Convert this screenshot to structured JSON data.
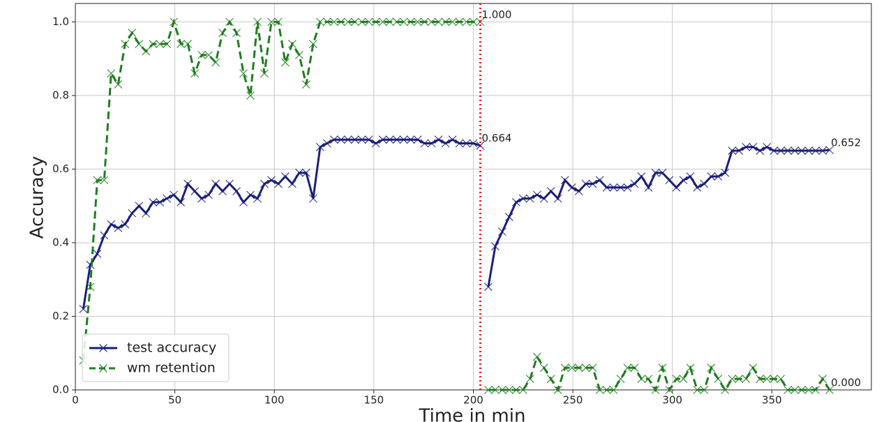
{
  "chart_data": {
    "type": "line",
    "xlabel": "Time in min",
    "ylabel": "Accuracy",
    "xlim": [
      0,
      400
    ],
    "ylim": [
      0,
      1.05
    ],
    "xticks": [
      0,
      50,
      100,
      150,
      200,
      250,
      300,
      350
    ],
    "yticks": [
      {
        "value": 0,
        "label": "0.0"
      },
      {
        "value": 0.2,
        "label": "0.2"
      },
      {
        "value": 0.4,
        "label": "0.4"
      },
      {
        "value": 0.6,
        "label": "0.6"
      },
      {
        "value": 0.8,
        "label": "0.8"
      },
      {
        "value": 1.0,
        "label": "1.0"
      }
    ],
    "grid": true,
    "legend": "lower left",
    "x": [
      4,
      7.5,
      11,
      14.5,
      18,
      21.5,
      25,
      28.5,
      32,
      35.5,
      39,
      42.5,
      46,
      49.5,
      53,
      56.5,
      60,
      63.5,
      67,
      70.5,
      74,
      77.5,
      81,
      84.5,
      88,
      91.5,
      95,
      98.5,
      102,
      105.5,
      109,
      112.5,
      116,
      119.5,
      123,
      126.5,
      130,
      133.5,
      137,
      140.5,
      144,
      147.5,
      151,
      154.5,
      158,
      161.5,
      165,
      168.5,
      172,
      175.5,
      179,
      182.5,
      186,
      189.5,
      193,
      196.5,
      200,
      203.5,
      205.5,
      207.5,
      211,
      214.5,
      218,
      221.5,
      225,
      228.5,
      232,
      235.5,
      239,
      242.5,
      246,
      249.5,
      253,
      256.5,
      260,
      263.5,
      267,
      270.5,
      274,
      277.5,
      281,
      284.5,
      288,
      291.5,
      295,
      298.5,
      302,
      305.5,
      309,
      312.5,
      316,
      319.5,
      323,
      326.5,
      330,
      333.5,
      337,
      340.5,
      344,
      347.5,
      351,
      354.5,
      358,
      361.5,
      365,
      368.5,
      372,
      375.5,
      379
    ],
    "series": [
      {
        "name": "test accuracy",
        "color": "#1a1f7a",
        "dash": false,
        "values": [
          0.22,
          0.34,
          0.37,
          0.42,
          0.45,
          0.44,
          0.45,
          0.48,
          0.5,
          0.48,
          0.51,
          0.51,
          0.52,
          0.53,
          0.51,
          0.56,
          0.54,
          0.52,
          0.53,
          0.56,
          0.54,
          0.56,
          0.54,
          0.51,
          0.53,
          0.52,
          0.56,
          0.57,
          0.56,
          0.58,
          0.56,
          0.59,
          0.59,
          0.52,
          0.66,
          0.67,
          0.68,
          0.68,
          0.68,
          0.68,
          0.68,
          0.68,
          0.67,
          0.68,
          0.68,
          0.68,
          0.68,
          0.68,
          0.68,
          0.67,
          0.67,
          0.68,
          0.67,
          0.68,
          0.67,
          0.67,
          0.67,
          0.664,
          null,
          0.28,
          0.39,
          0.43,
          0.47,
          0.51,
          0.52,
          0.52,
          0.53,
          0.52,
          0.54,
          0.52,
          0.57,
          0.55,
          0.54,
          0.56,
          0.56,
          0.57,
          0.55,
          0.55,
          0.55,
          0.55,
          0.56,
          0.58,
          0.55,
          0.59,
          0.59,
          0.57,
          0.55,
          0.57,
          0.58,
          0.55,
          0.56,
          0.58,
          0.58,
          0.59,
          0.65,
          0.65,
          0.66,
          0.66,
          0.65,
          0.66,
          0.65,
          0.65,
          0.65,
          0.65,
          0.65,
          0.65,
          0.65,
          0.65,
          0.652
        ]
      },
      {
        "name": "wm retention",
        "color": "#1e7d1e",
        "dash": true,
        "values": [
          0.08,
          0.28,
          0.57,
          0.57,
          0.86,
          0.83,
          0.94,
          0.97,
          0.94,
          0.92,
          0.94,
          0.94,
          0.94,
          1.0,
          0.94,
          0.94,
          0.86,
          0.91,
          0.91,
          0.89,
          0.97,
          1.0,
          0.97,
          0.86,
          0.8,
          1.0,
          0.86,
          1.0,
          1.0,
          0.89,
          0.94,
          0.91,
          0.83,
          0.94,
          1.0,
          1.0,
          1.0,
          1.0,
          1.0,
          1.0,
          1.0,
          1.0,
          1.0,
          1.0,
          1.0,
          1.0,
          1.0,
          1.0,
          1.0,
          1.0,
          1.0,
          1.0,
          1.0,
          1.0,
          1.0,
          1.0,
          1.0,
          1.0,
          null,
          0,
          0,
          0,
          0,
          0,
          0,
          0.03,
          0.09,
          0.06,
          0.03,
          0,
          0.06,
          0.06,
          0.06,
          0.06,
          0.06,
          0,
          0,
          0,
          0.03,
          0.06,
          0.06,
          0.03,
          0.03,
          0,
          0.06,
          0,
          0.03,
          0.03,
          0.06,
          0,
          0,
          0.06,
          0.03,
          0,
          0.03,
          0.03,
          0.03,
          0.06,
          0.03,
          0.03,
          0.03,
          0.03,
          0,
          0,
          0,
          0,
          0,
          0.03,
          0
        ]
      }
    ],
    "vline": {
      "x": 203.5,
      "color": "#e02020"
    },
    "annotations": [
      {
        "text": "1.000",
        "x": 203.5,
        "y": 1.0
      },
      {
        "text": "0.664",
        "x": 203.5,
        "y": 0.664
      },
      {
        "text": "0.652",
        "x": 379,
        "y": 0.652
      },
      {
        "text": "0.000",
        "x": 379,
        "y": 0
      }
    ]
  }
}
